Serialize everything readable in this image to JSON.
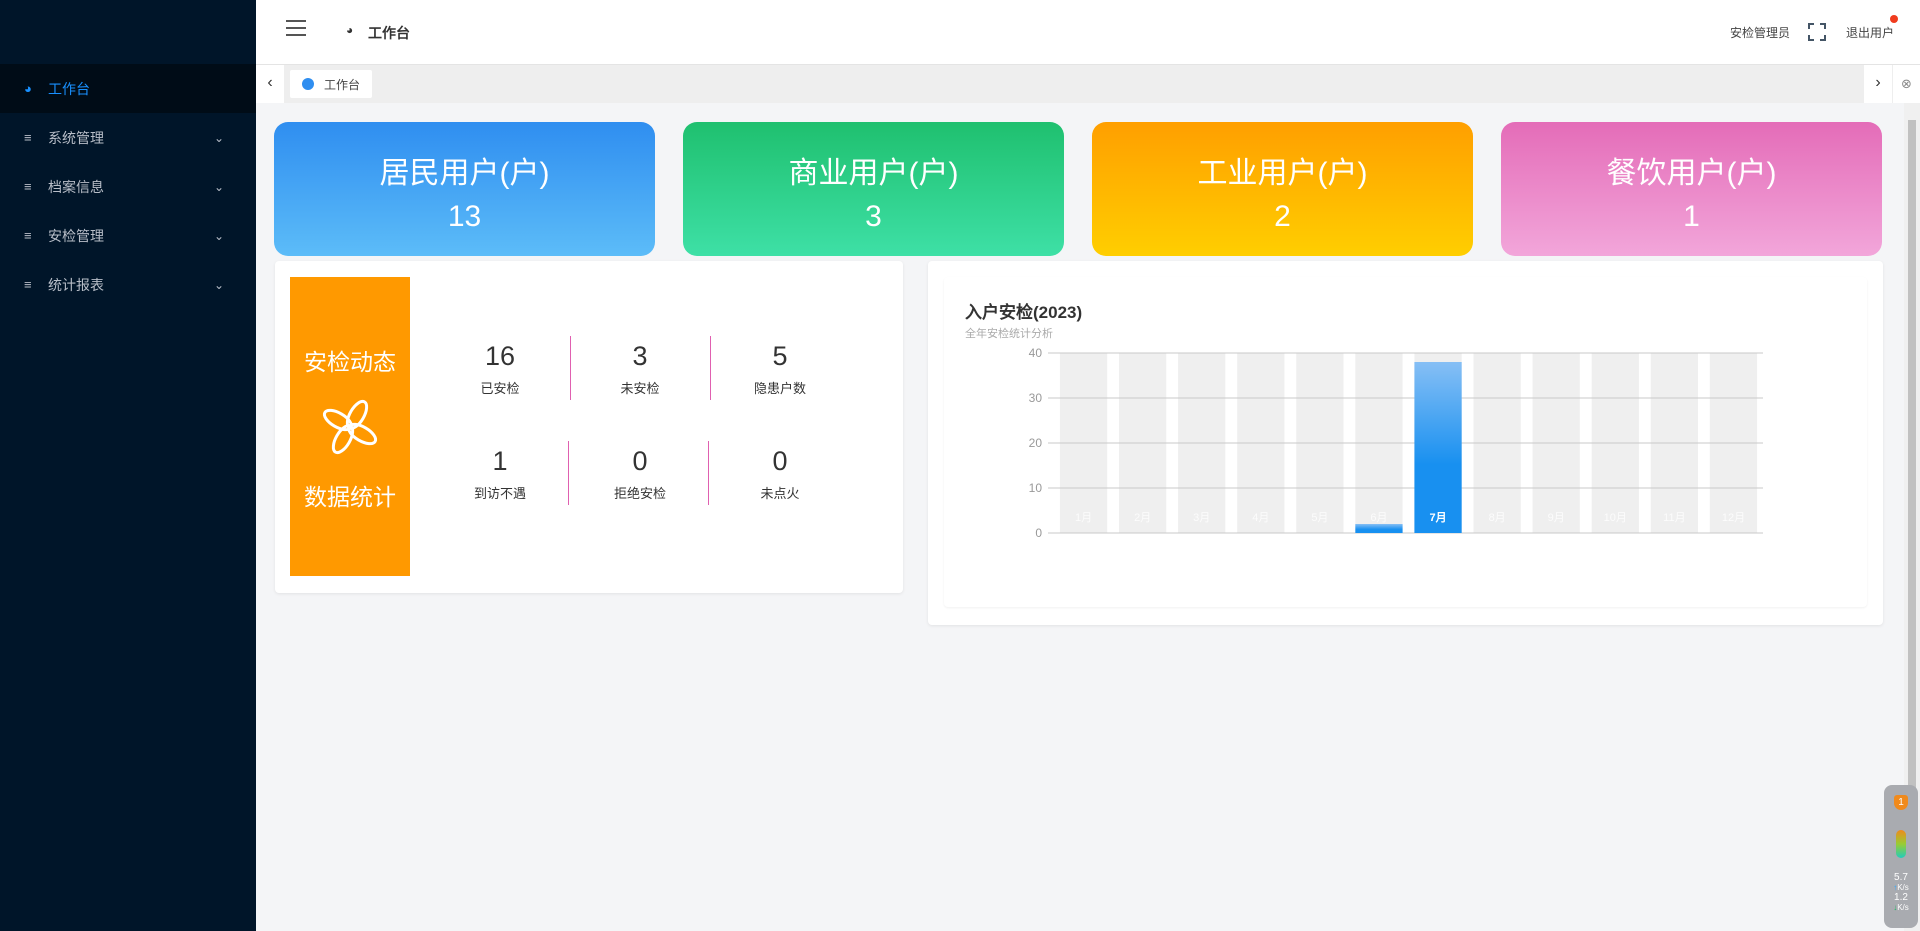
{
  "sidebar": {
    "items": [
      {
        "label": "工作台",
        "icon": "planet-icon",
        "active": true
      },
      {
        "label": "系统管理",
        "icon": "menu-lines-icon"
      },
      {
        "label": "档案信息",
        "icon": "menu-lines-icon"
      },
      {
        "label": "安检管理",
        "icon": "menu-lines-icon"
      },
      {
        "label": "统计报表",
        "icon": "menu-lines-icon"
      }
    ]
  },
  "header": {
    "breadcrumb": "工作台",
    "user": "安检管理员",
    "logout": "退出用户"
  },
  "tabs": [
    {
      "label": "工作台",
      "active": true
    }
  ],
  "cards": [
    {
      "title": "居民用户(户)",
      "value": "13",
      "colors": [
        "#2f8ef0",
        "#5cbcf8"
      ]
    },
    {
      "title": "商业用户(户)",
      "value": "3",
      "colors": [
        "#1fc06f",
        "#3ee0a6"
      ]
    },
    {
      "title": "工业用户(户)",
      "value": "2",
      "colors": [
        "#ff9f00",
        "#ffce00"
      ]
    },
    {
      "title": "餐饮用户(户)",
      "value": "1",
      "colors": [
        "#e46cb8",
        "#f2a6da"
      ]
    }
  ],
  "dynamics": {
    "title1": "安检动态",
    "title2": "数据统计",
    "color": "#ff9900",
    "stats": [
      {
        "value": "16",
        "label": "已安检"
      },
      {
        "value": "3",
        "label": "未安检"
      },
      {
        "value": "5",
        "label": "隐患户数"
      },
      {
        "value": "1",
        "label": "到访不遇"
      },
      {
        "value": "0",
        "label": "拒绝安检"
      },
      {
        "value": "0",
        "label": "未点火"
      }
    ]
  },
  "chart_data": {
    "type": "bar",
    "title": "入户安检(2023)",
    "subtitle": "全年安检统计分析",
    "categories": [
      "1月",
      "2月",
      "3月",
      "4月",
      "5月",
      "6月",
      "7月",
      "8月",
      "9月",
      "10月",
      "11月",
      "12月"
    ],
    "values": [
      0,
      0,
      0,
      0,
      0,
      2,
      38,
      0,
      0,
      0,
      0,
      0
    ],
    "ylim": [
      0,
      40
    ],
    "yticks": [
      "0",
      "10",
      "20",
      "30",
      "40"
    ],
    "grid": true,
    "bar_color": "#1890f0",
    "background_bar_color": "#efefef"
  },
  "widget": {
    "badge": "1",
    "up": "5.7",
    "down": "1.2",
    "unit": "K/s"
  }
}
